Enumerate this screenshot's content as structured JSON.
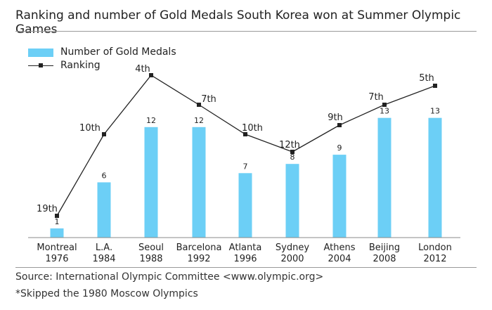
{
  "header": {
    "title": "Ranking and number of Gold Medals South Korea won at Summer Olympic Games"
  },
  "footer": {
    "source": "Source: International Olympic Committee <www.olympic.org>",
    "note": "*Skipped the 1980 Moscow Olympics"
  },
  "colors": {
    "bar": "#6ccff6",
    "line": "#222222",
    "axis": "#888888"
  },
  "chart_data": {
    "type": "bar",
    "categories": [
      {
        "city": "Montreal",
        "year": "1976"
      },
      {
        "city": "L.A.",
        "year": "1984"
      },
      {
        "city": "Seoul",
        "year": "1988"
      },
      {
        "city": "Barcelona",
        "year": "1992"
      },
      {
        "city": "Atlanta",
        "year": "1996"
      },
      {
        "city": "Sydney",
        "year": "2000"
      },
      {
        "city": "Athens",
        "year": "2004"
      },
      {
        "city": "Beijing",
        "year": "2008"
      },
      {
        "city": "London",
        "year": "2012"
      }
    ],
    "series": [
      {
        "name": "Number of Gold Medals",
        "type": "bar",
        "values": [
          1,
          6,
          12,
          12,
          7,
          8,
          9,
          13,
          13
        ],
        "labels": [
          "1",
          "6",
          "12",
          "12",
          "7",
          "8",
          "9",
          "13",
          "13"
        ]
      },
      {
        "name": "Ranking",
        "type": "line",
        "values": [
          19,
          10,
          4,
          7,
          10,
          12,
          9,
          7,
          5
        ],
        "labels": [
          "19th",
          "10th",
          "4th",
          "7th",
          "10th",
          "12th",
          "9th",
          "7th",
          "5th"
        ]
      }
    ],
    "legend": "top-left",
    "grid": false
  }
}
